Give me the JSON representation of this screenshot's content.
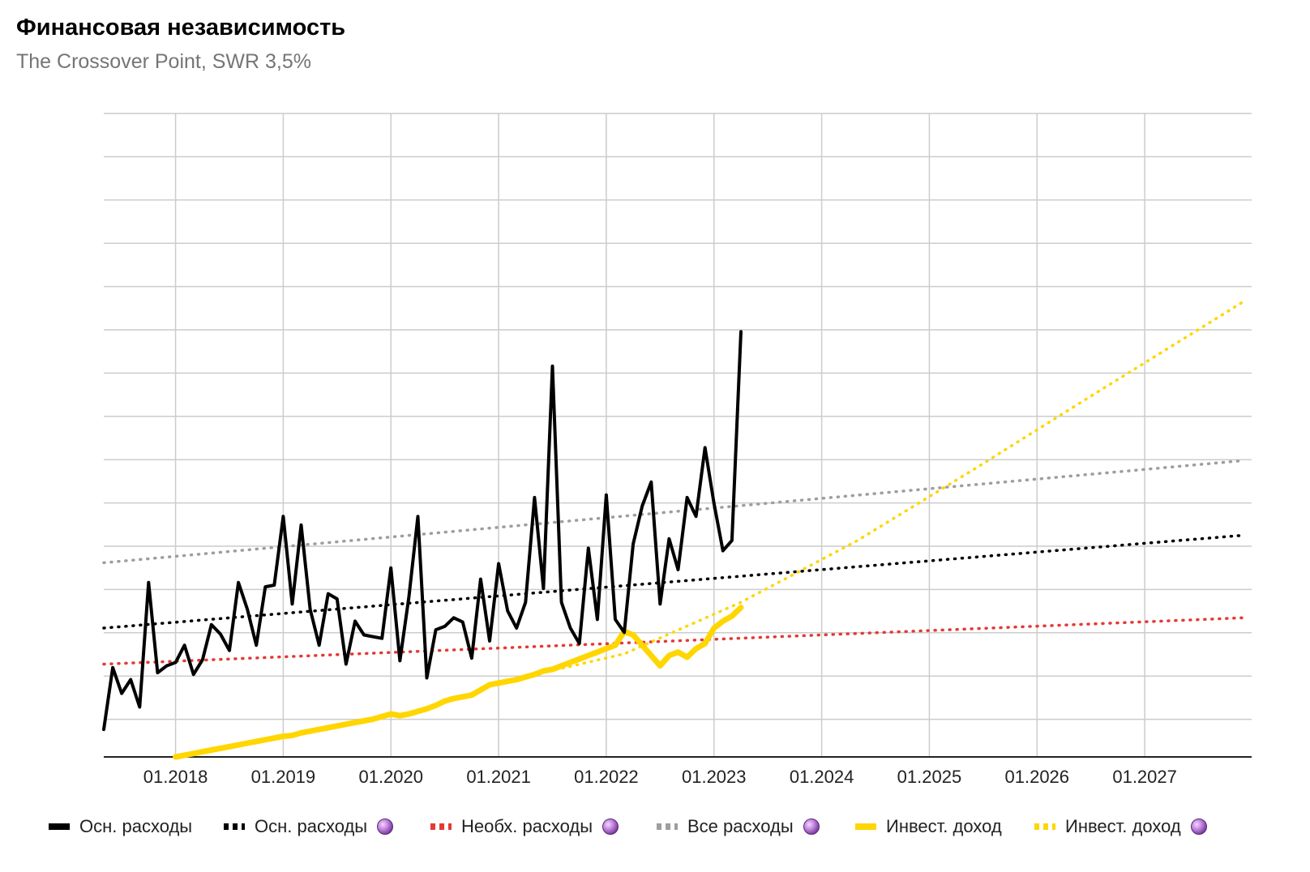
{
  "title": "Финансовая независимость",
  "subtitle": "The Crossover Point, SWR 3,5%",
  "chart_data": {
    "type": "line",
    "x_ticks": [
      "01.2018",
      "01.2019",
      "01.2020",
      "01.2021",
      "01.2022",
      "01.2023",
      "01.2024",
      "01.2025",
      "01.2026",
      "01.2027"
    ],
    "y_ticks_visible": false,
    "grid": true,
    "legend_position": "bottom",
    "series": [
      {
        "name": "Осн. расходы",
        "style": "solid",
        "color": "#000000",
        "points": [
          [
            "2017-05",
            0.32
          ],
          [
            "2017-06",
            1.04
          ],
          [
            "2017-07",
            0.74
          ],
          [
            "2017-08",
            0.9
          ],
          [
            "2017-09",
            0.58
          ],
          [
            "2017-10",
            2.03
          ],
          [
            "2017-11",
            0.98
          ],
          [
            "2017-12",
            1.06
          ],
          [
            "2018-01",
            1.1
          ],
          [
            "2018-02",
            1.3
          ],
          [
            "2018-03",
            0.96
          ],
          [
            "2018-04",
            1.13
          ],
          [
            "2018-05",
            1.54
          ],
          [
            "2018-06",
            1.43
          ],
          [
            "2018-07",
            1.24
          ],
          [
            "2018-08",
            2.03
          ],
          [
            "2018-09",
            1.72
          ],
          [
            "2018-10",
            1.3
          ],
          [
            "2018-11",
            1.98
          ],
          [
            "2018-12",
            2.0
          ],
          [
            "2019-01",
            2.8
          ],
          [
            "2019-02",
            1.78
          ],
          [
            "2019-03",
            2.7
          ],
          [
            "2019-04",
            1.72
          ],
          [
            "2019-05",
            1.3
          ],
          [
            "2019-06",
            1.9
          ],
          [
            "2019-07",
            1.84
          ],
          [
            "2019-08",
            1.08
          ],
          [
            "2019-09",
            1.58
          ],
          [
            "2019-10",
            1.42
          ],
          [
            "2019-11",
            1.4
          ],
          [
            "2019-12",
            1.38
          ],
          [
            "2020-01",
            2.2
          ],
          [
            "2020-02",
            1.12
          ],
          [
            "2020-03",
            1.86
          ],
          [
            "2020-04",
            2.8
          ],
          [
            "2020-05",
            0.92
          ],
          [
            "2020-06",
            1.48
          ],
          [
            "2020-07",
            1.52
          ],
          [
            "2020-08",
            1.62
          ],
          [
            "2020-09",
            1.57
          ],
          [
            "2020-10",
            1.15
          ],
          [
            "2020-11",
            2.07
          ],
          [
            "2020-12",
            1.35
          ],
          [
            "2021-01",
            2.25
          ],
          [
            "2021-02",
            1.7
          ],
          [
            "2021-03",
            1.5
          ],
          [
            "2021-04",
            1.8
          ],
          [
            "2021-05",
            3.02
          ],
          [
            "2021-06",
            1.96
          ],
          [
            "2021-07",
            4.55
          ],
          [
            "2021-08",
            1.8
          ],
          [
            "2021-09",
            1.5
          ],
          [
            "2021-10",
            1.32
          ],
          [
            "2021-11",
            2.43
          ],
          [
            "2021-12",
            1.6
          ],
          [
            "2022-01",
            3.05
          ],
          [
            "2022-02",
            1.6
          ],
          [
            "2022-03",
            1.45
          ],
          [
            "2022-04",
            2.48
          ],
          [
            "2022-05",
            2.92
          ],
          [
            "2022-06",
            3.2
          ],
          [
            "2022-07",
            1.78
          ],
          [
            "2022-08",
            2.54
          ],
          [
            "2022-09",
            2.18
          ],
          [
            "2022-10",
            3.02
          ],
          [
            "2022-11",
            2.8
          ],
          [
            "2022-12",
            3.6
          ],
          [
            "2023-01",
            2.95
          ],
          [
            "2023-02",
            2.4
          ],
          [
            "2023-03",
            2.52
          ],
          [
            "2023-04",
            4.95
          ]
        ]
      },
      {
        "name": "Осн. расходы 🔮",
        "style": "dotted",
        "color": "#000000",
        "trend": {
          "x_start": "2017-05",
          "y_start": 1.5,
          "x_end": "2027-12",
          "y_end": 2.58
        }
      },
      {
        "name": "Необх. расходы 🔮",
        "style": "dotted",
        "color": "#e53935",
        "trend": {
          "x_start": "2017-05",
          "y_start": 1.08,
          "x_end": "2027-12",
          "y_end": 1.62
        }
      },
      {
        "name": "Все расходы 🔮",
        "style": "dotted",
        "color": "#9e9e9e",
        "trend": {
          "x_start": "2017-05",
          "y_start": 2.26,
          "x_end": "2027-12",
          "y_end": 3.45
        }
      },
      {
        "name": "Инвест. доход",
        "style": "solid",
        "color": "#ffd600",
        "points": [
          [
            "2018-01",
            0.0
          ],
          [
            "2018-02",
            0.02
          ],
          [
            "2018-03",
            0.04
          ],
          [
            "2018-04",
            0.06
          ],
          [
            "2018-05",
            0.08
          ],
          [
            "2018-06",
            0.1
          ],
          [
            "2018-07",
            0.12
          ],
          [
            "2018-08",
            0.14
          ],
          [
            "2018-09",
            0.16
          ],
          [
            "2018-10",
            0.18
          ],
          [
            "2018-11",
            0.2
          ],
          [
            "2018-12",
            0.22
          ],
          [
            "2019-01",
            0.24
          ],
          [
            "2019-02",
            0.25
          ],
          [
            "2019-03",
            0.28
          ],
          [
            "2019-04",
            0.3
          ],
          [
            "2019-05",
            0.32
          ],
          [
            "2019-06",
            0.34
          ],
          [
            "2019-07",
            0.36
          ],
          [
            "2019-08",
            0.38
          ],
          [
            "2019-09",
            0.4
          ],
          [
            "2019-10",
            0.42
          ],
          [
            "2019-11",
            0.44
          ],
          [
            "2019-12",
            0.47
          ],
          [
            "2020-01",
            0.5
          ],
          [
            "2020-02",
            0.48
          ],
          [
            "2020-03",
            0.5
          ],
          [
            "2020-04",
            0.53
          ],
          [
            "2020-05",
            0.56
          ],
          [
            "2020-06",
            0.6
          ],
          [
            "2020-07",
            0.65
          ],
          [
            "2020-08",
            0.68
          ],
          [
            "2020-09",
            0.7
          ],
          [
            "2020-10",
            0.72
          ],
          [
            "2020-11",
            0.78
          ],
          [
            "2020-12",
            0.84
          ],
          [
            "2021-01",
            0.86
          ],
          [
            "2021-02",
            0.88
          ],
          [
            "2021-03",
            0.9
          ],
          [
            "2021-04",
            0.93
          ],
          [
            "2021-05",
            0.96
          ],
          [
            "2021-06",
            1.0
          ],
          [
            "2021-07",
            1.02
          ],
          [
            "2021-08",
            1.06
          ],
          [
            "2021-09",
            1.1
          ],
          [
            "2021-10",
            1.14
          ],
          [
            "2021-11",
            1.18
          ],
          [
            "2021-12",
            1.22
          ],
          [
            "2022-01",
            1.26
          ],
          [
            "2022-02",
            1.3
          ],
          [
            "2022-03",
            1.46
          ],
          [
            "2022-04",
            1.42
          ],
          [
            "2022-05",
            1.3
          ],
          [
            "2022-06",
            1.18
          ],
          [
            "2022-07",
            1.06
          ],
          [
            "2022-08",
            1.18
          ],
          [
            "2022-09",
            1.22
          ],
          [
            "2022-10",
            1.16
          ],
          [
            "2022-11",
            1.26
          ],
          [
            "2022-12",
            1.32
          ],
          [
            "2023-01",
            1.5
          ],
          [
            "2023-02",
            1.58
          ],
          [
            "2023-03",
            1.64
          ],
          [
            "2023-04",
            1.74
          ]
        ]
      },
      {
        "name": "Инвест. доход 🔮",
        "style": "dotted",
        "color": "#ffd600",
        "trend_points": [
          [
            "2021-01",
            0.86
          ],
          [
            "2022-03",
            1.2
          ],
          [
            "2023-04",
            1.8
          ],
          [
            "2024-05",
            2.52
          ],
          [
            "2025-06",
            3.35
          ],
          [
            "2026-07",
            4.2
          ],
          [
            "2027-12",
            5.3
          ]
        ]
      }
    ]
  },
  "legend": [
    {
      "label": "Осн. расходы",
      "color": "#000000",
      "style": "solid",
      "orb": false
    },
    {
      "label": "Осн. расходы",
      "color": "#000000",
      "style": "dotted",
      "orb": true
    },
    {
      "label": "Необх. расходы",
      "color": "#e53935",
      "style": "dotted",
      "orb": true
    },
    {
      "label": "Все расходы",
      "color": "#9e9e9e",
      "style": "dotted",
      "orb": true
    },
    {
      "label": "Инвест. доход",
      "color": "#ffd600",
      "style": "solid",
      "orb": false
    },
    {
      "label": "Инвест. доход",
      "color": "#ffd600",
      "style": "dotted",
      "orb": true
    }
  ]
}
